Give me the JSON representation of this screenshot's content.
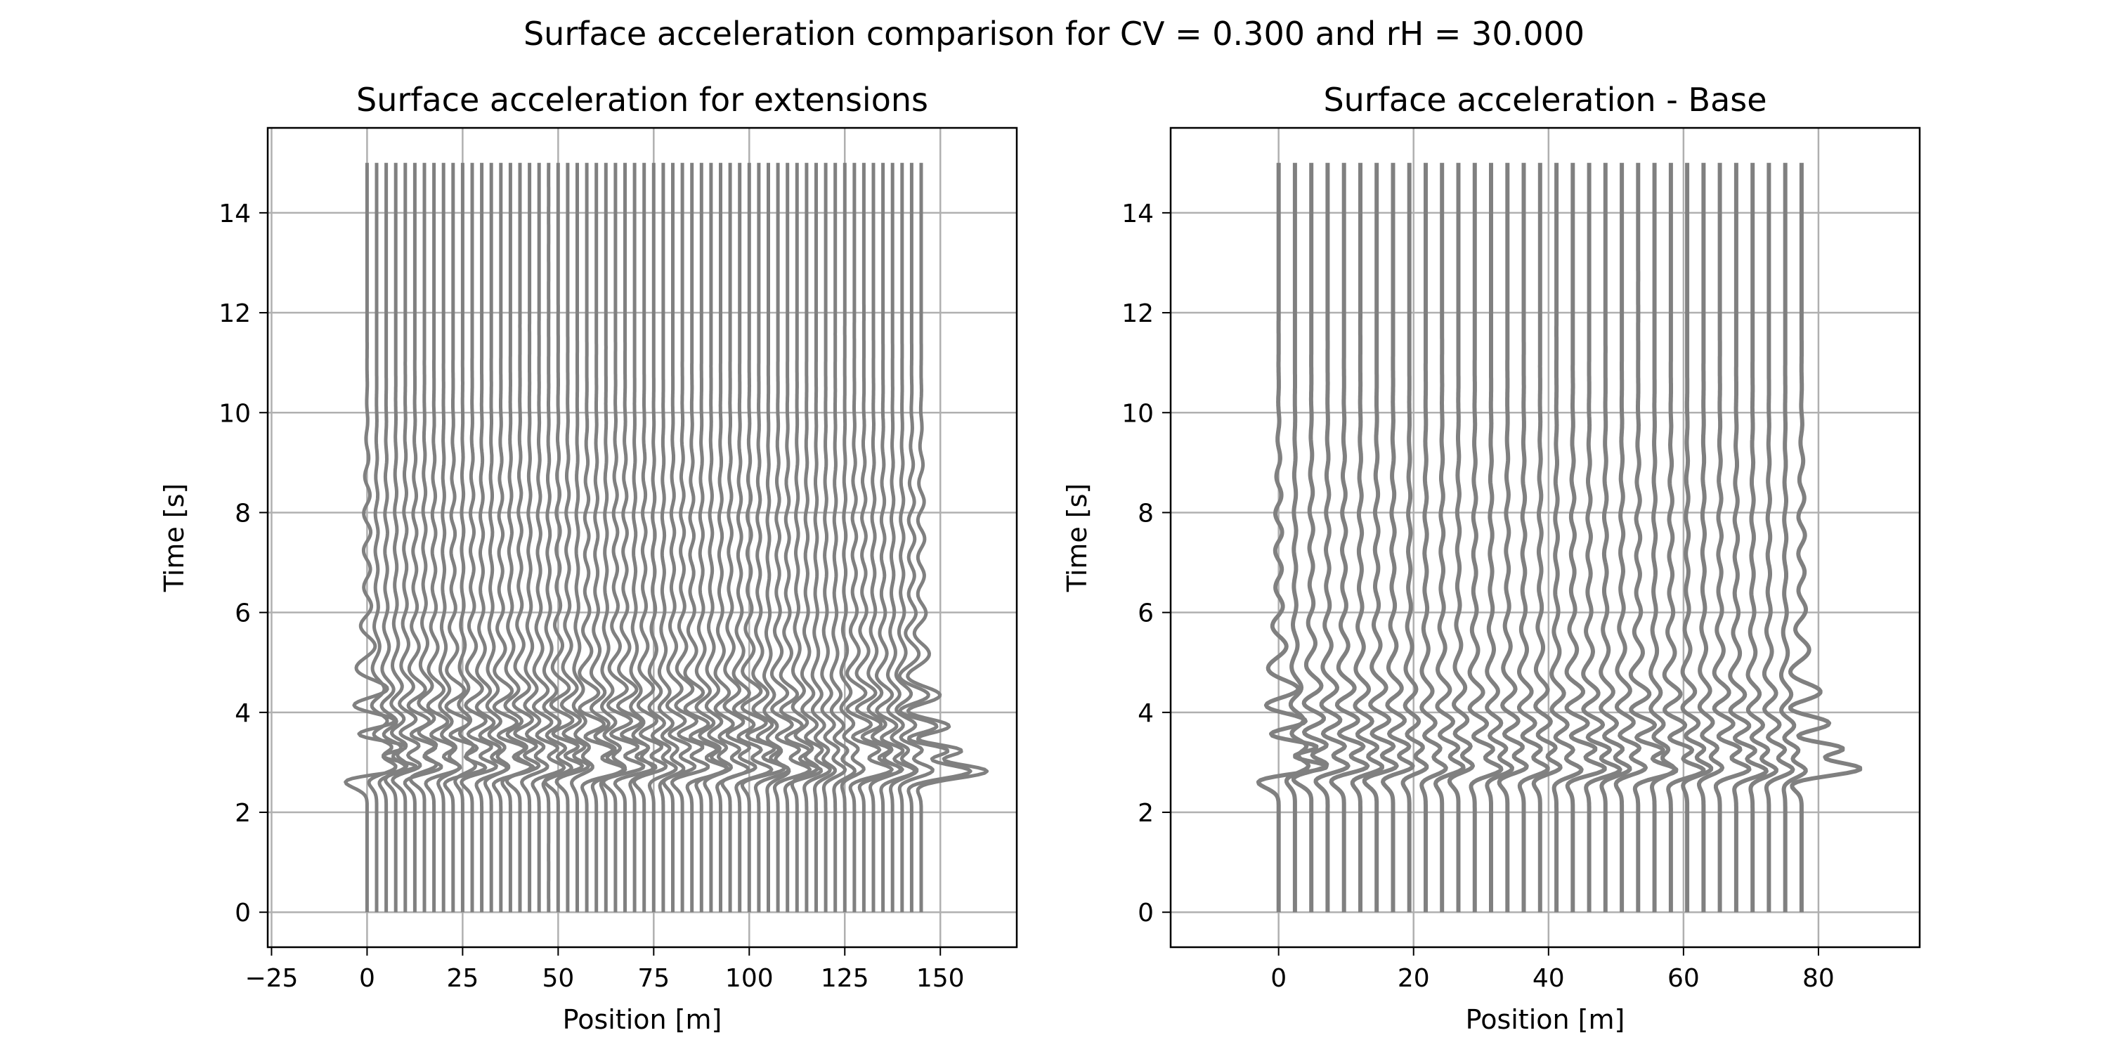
{
  "figure": {
    "suptitle": "Surface acceleration comparison for CV = 0.300 and rH = 30.000"
  },
  "style": {
    "trace_color": "#808080",
    "grid_color": "#b0b0b0"
  },
  "chart_data": [
    {
      "type": "line",
      "title": "Surface acceleration for extensions",
      "xlabel": "Position [m]",
      "ylabel": "Time [s]",
      "xlim": [
        -26,
        170
      ],
      "ylim": [
        -0.7,
        15.7
      ],
      "xticks": [
        -25,
        0,
        25,
        50,
        75,
        100,
        125,
        150
      ],
      "xtick_labels": [
        "−25",
        "0",
        "25",
        "50",
        "75",
        "100",
        "125",
        "150"
      ],
      "yticks": [
        0,
        2,
        4,
        6,
        8,
        10,
        12,
        14
      ],
      "ytick_labels": [
        "0",
        "2",
        "4",
        "6",
        "8",
        "10",
        "12",
        "14"
      ],
      "grid": true,
      "traces": {
        "count": 59,
        "x_start": 0,
        "x_end": 145,
        "t_start": 0,
        "t_end": 15
      }
    },
    {
      "type": "line",
      "title": "Surface acceleration - Base",
      "xlabel": "Position [m]",
      "ylabel": "Time [s]",
      "xlim": [
        -16,
        95
      ],
      "ylim": [
        -0.7,
        15.7
      ],
      "xticks": [
        0,
        20,
        40,
        60,
        80
      ],
      "xtick_labels": [
        "0",
        "20",
        "40",
        "60",
        "80"
      ],
      "yticks": [
        0,
        2,
        4,
        6,
        8,
        10,
        12,
        14
      ],
      "ytick_labels": [
        "0",
        "2",
        "4",
        "6",
        "8",
        "10",
        "12",
        "14"
      ],
      "grid": true,
      "traces": {
        "count": 33,
        "x_start": 0,
        "x_end": 77.5,
        "t_start": 0,
        "t_end": 15
      }
    }
  ]
}
